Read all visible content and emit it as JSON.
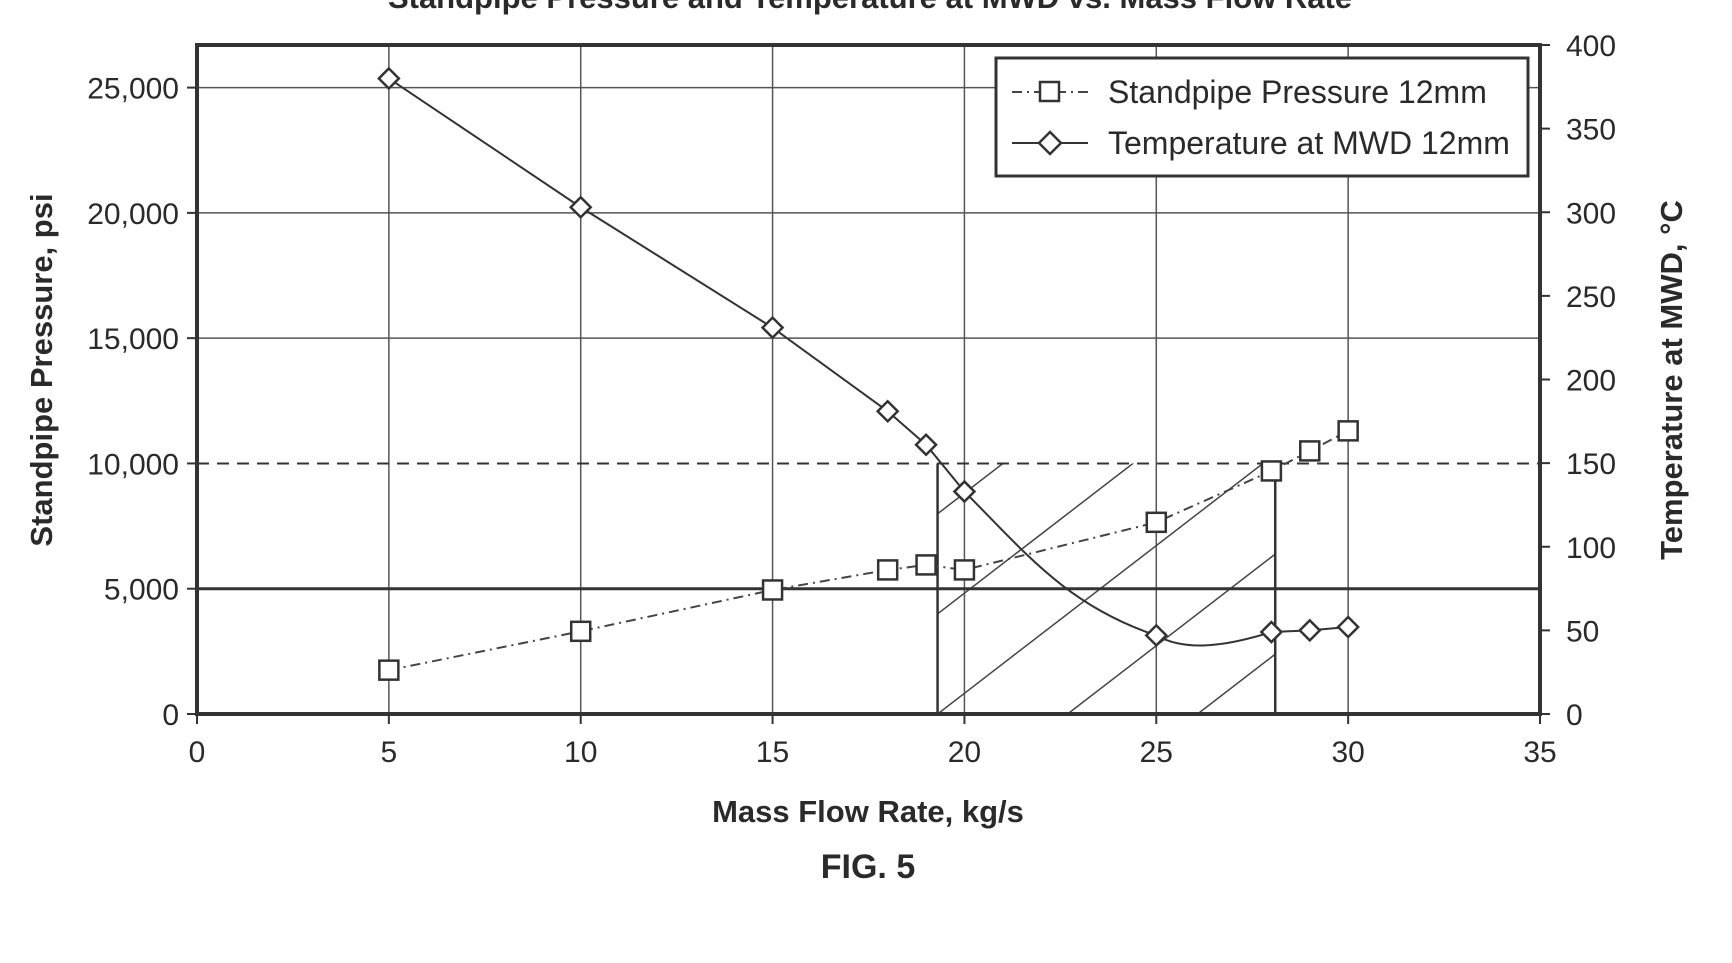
{
  "chart_data": {
    "type": "line",
    "title": "Standpipe Pressure and Temperature at MWD vs. Mass Flow Rate",
    "caption": "FIG. 5",
    "xlabel": "Mass Flow Rate, kg/s",
    "ylabel_left": "Standpipe Pressure, psi",
    "ylabel_right": "Temperature at MWD, °C",
    "xlim": [
      0,
      35
    ],
    "ylim_left": [
      0,
      26700
    ],
    "ylim_right": [
      0,
      400
    ],
    "x_ticks": [
      "0",
      "5",
      "10",
      "15",
      "20",
      "25",
      "30",
      "35"
    ],
    "y_left_ticks": [
      "0",
      "5,000",
      "10,000",
      "15,000",
      "20,000",
      "25,000"
    ],
    "y_right_ticks": [
      "0",
      "50",
      "100",
      "150",
      "200",
      "250",
      "300",
      "350",
      "400"
    ],
    "grid": true,
    "series": [
      {
        "name": "Standpipe Pressure 12mm",
        "axis": "left",
        "marker": "square",
        "line_style": "dash-dot",
        "x": [
          5,
          10,
          15,
          18,
          19,
          20,
          25,
          28,
          29,
          30
        ],
        "values": [
          1750,
          3300,
          4950,
          5750,
          5950,
          5750,
          7650,
          9700,
          10500,
          11300
        ]
      },
      {
        "name": "Temperature at MWD 12mm",
        "axis": "right",
        "marker": "diamond",
        "line_style": "solid",
        "x": [
          5,
          10,
          15,
          18,
          19,
          20,
          25,
          28,
          29,
          30
        ],
        "values": [
          380,
          303,
          231,
          181,
          161,
          133,
          47,
          49,
          50,
          52
        ]
      }
    ],
    "annotations": {
      "reference_line_y_left": 10000,
      "bold_line_y_left": 5000,
      "vertical_lines_x": [
        19.3,
        28.1
      ],
      "hatched_region": "between x=19.3 and x=28.1, below y=10,000 psi"
    },
    "legend_position": "top-right"
  }
}
